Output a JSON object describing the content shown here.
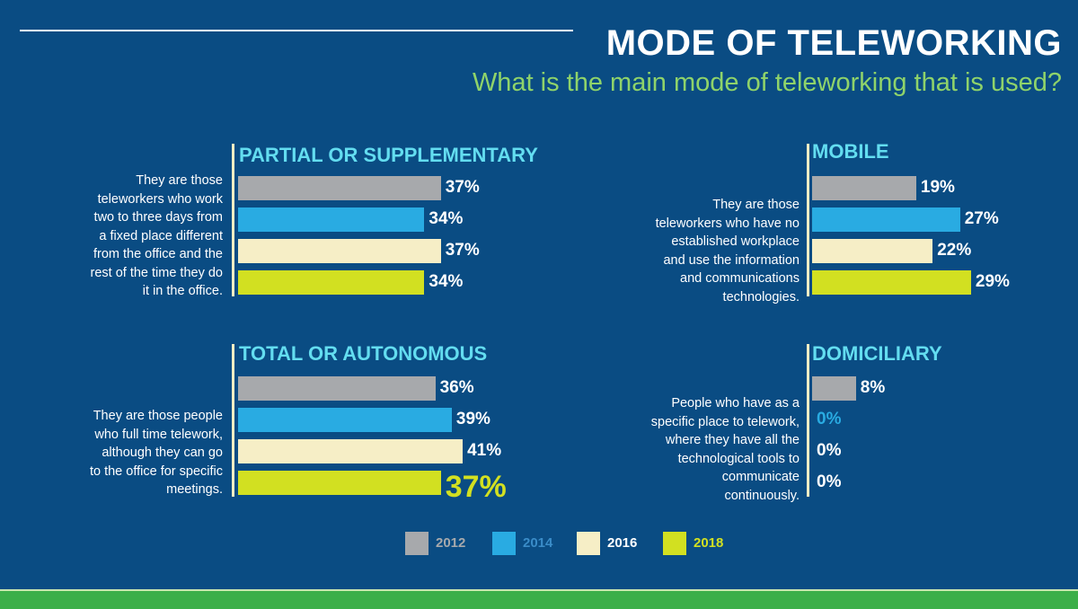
{
  "header": {
    "title": "MODE OF TELEWORKING",
    "subtitle": "What is the main mode of teleworking that is used?"
  },
  "colors": {
    "background": "#0a4c83",
    "title_accent": "#63ddf0",
    "subtitle": "#8fd36a",
    "bottom_bar": "#3caf49",
    "2012": "#a7a9ac",
    "2014": "#29abe2",
    "2016": "#f6eec6",
    "2018": "#d2e021"
  },
  "chart_data": [
    {
      "type": "bar",
      "title": "PARTIAL OR SUPPLEMENTARY",
      "description_lines": [
        "They are those",
        "teleworkers who work",
        "two to three days from",
        "a fixed place different",
        "from the office and the",
        "rest of the time they do",
        "it in the office."
      ],
      "categories": [
        "2012",
        "2014",
        "2016",
        "2018"
      ],
      "values": [
        37,
        34,
        37,
        34
      ],
      "labels": [
        "37%",
        "34%",
        "37%",
        "34%"
      ],
      "unit": "%"
    },
    {
      "type": "bar",
      "title": "MOBILE",
      "description_lines": [
        "They are those",
        "teleworkers who have no",
        "established workplace",
        "and use the information",
        "and communications",
        "technologies."
      ],
      "categories": [
        "2012",
        "2014",
        "2016",
        "2018"
      ],
      "values": [
        19,
        27,
        22,
        29
      ],
      "labels": [
        "19%",
        "27%",
        "22%",
        "29%"
      ],
      "unit": "%"
    },
    {
      "type": "bar",
      "title": "TOTAL OR AUTONOMOUS",
      "description_lines": [
        "They are those people",
        "who full time telework,",
        "although they can go",
        "to the office for specific",
        "meetings."
      ],
      "categories": [
        "2012",
        "2014",
        "2016",
        "2018"
      ],
      "values": [
        36,
        39,
        41,
        37
      ],
      "labels": [
        "36%",
        "39%",
        "41%",
        "37%"
      ],
      "unit": "%"
    },
    {
      "type": "bar",
      "title": "DOMICILIARY",
      "description_lines": [
        "People who have as a",
        "specific place to telework,",
        "where they have all the",
        "technological tools to",
        "communicate",
        "continuously."
      ],
      "categories": [
        "2012",
        "2014",
        "2016",
        "2018"
      ],
      "values": [
        8,
        0,
        0,
        0
      ],
      "labels": [
        "8%",
        "0%",
        "0%",
        "0%"
      ],
      "unit": "%"
    }
  ],
  "legend": [
    {
      "year": "2012",
      "color": "#a7a9ac",
      "text_color": "#a7a9ac"
    },
    {
      "year": "2014",
      "color": "#29abe2",
      "text_color": "#3a8cc8"
    },
    {
      "year": "2016",
      "color": "#f6eec6",
      "text_color": "#ffffff"
    },
    {
      "year": "2018",
      "color": "#d2e021",
      "text_color": "#d2e021"
    }
  ]
}
